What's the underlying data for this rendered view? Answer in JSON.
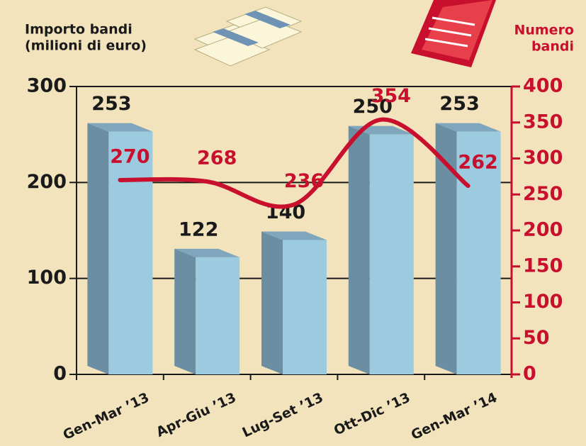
{
  "chart_data": {
    "type": "bar-line",
    "y_label": [
      "Importo bandi",
      "(milioni di euro)"
    ],
    "y2_label": [
      "Numero",
      "bandi"
    ],
    "categories": [
      "Gen-Mar ’13",
      "Apr-Giu ’13",
      "Lug-Set ’13",
      "Ott-Dic ’13",
      "Gen-Mar ’14"
    ],
    "series": [
      {
        "type": "bar",
        "color": "#9ccbe0",
        "values": [
          253,
          122,
          140,
          250,
          253
        ]
      },
      {
        "type": "line",
        "color": "#c8102e",
        "axis": "y2",
        "values": [
          270,
          268,
          236,
          354,
          262
        ]
      }
    ],
    "ylim": [
      0,
      300
    ],
    "yticks": [
      0,
      100,
      200,
      300
    ],
    "y2lim": [
      0,
      400
    ],
    "y2ticks": [
      0,
      50,
      100,
      150,
      200,
      250,
      300,
      350,
      400
    ],
    "grid": true
  }
}
